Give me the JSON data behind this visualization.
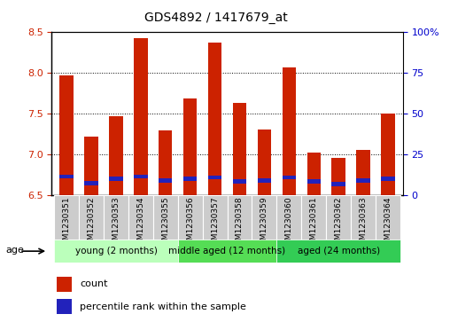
{
  "title": "GDS4892 / 1417679_at",
  "samples": [
    "GSM1230351",
    "GSM1230352",
    "GSM1230353",
    "GSM1230354",
    "GSM1230355",
    "GSM1230356",
    "GSM1230357",
    "GSM1230358",
    "GSM1230359",
    "GSM1230360",
    "GSM1230361",
    "GSM1230362",
    "GSM1230363",
    "GSM1230364"
  ],
  "count_values": [
    7.97,
    7.22,
    7.47,
    8.43,
    7.29,
    7.68,
    8.37,
    7.63,
    7.3,
    8.07,
    7.02,
    6.95,
    7.05,
    7.5
  ],
  "percentile_values": [
    6.7,
    6.62,
    6.67,
    6.7,
    6.65,
    6.67,
    6.69,
    6.64,
    6.65,
    6.69,
    6.64,
    6.61,
    6.65,
    6.67
  ],
  "ylim_left": [
    6.5,
    8.5
  ],
  "ylim_right": [
    0,
    100
  ],
  "yticks_left": [
    6.5,
    7.0,
    7.5,
    8.0,
    8.5
  ],
  "yticks_right": [
    0,
    25,
    50,
    75,
    100
  ],
  "ytick_labels_right": [
    "0",
    "25",
    "50",
    "75",
    "100%"
  ],
  "bar_width": 0.55,
  "bar_color_red": "#cc2200",
  "bar_color_blue": "#2222bb",
  "base": 6.5,
  "groups": [
    {
      "label": "young (2 months)",
      "start": 0,
      "end": 5,
      "color": "#bbffbb"
    },
    {
      "label": "middle aged (12 months)",
      "start": 5,
      "end": 9,
      "color": "#55dd55"
    },
    {
      "label": "aged (24 months)",
      "start": 9,
      "end": 14,
      "color": "#33cc55"
    }
  ],
  "age_label": "age",
  "legend_count_label": "count",
  "legend_percentile_label": "percentile rank within the sample",
  "tick_label_color_left": "#cc2200",
  "tick_label_color_right": "#0000cc",
  "bg_xtick": "#cccccc"
}
